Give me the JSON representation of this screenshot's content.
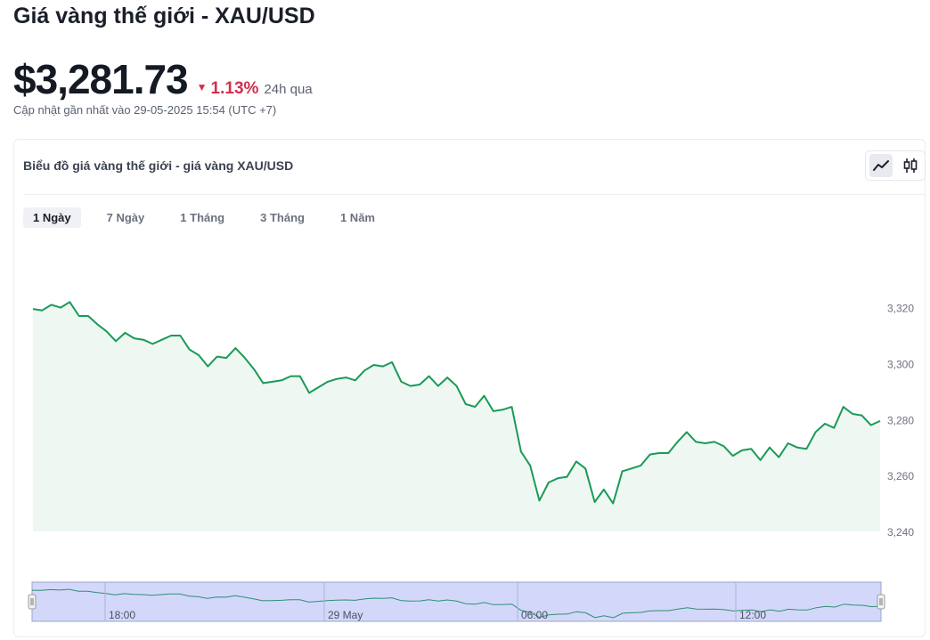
{
  "header": {
    "title": "Giá vàng thế giới - XAU/USD",
    "price": "$3,281.73",
    "change_pct": "1.13%",
    "change_period": "24h qua",
    "change_color": "#d32f4a",
    "updated": "Cập nhật gần nhất vào 29-05-2025 15:54 (UTC +7)"
  },
  "card": {
    "title": "Biểu đồ giá vàng thế giới - giá vàng XAU/USD",
    "view_toggle": [
      {
        "icon": "line-chart-icon",
        "active": true
      },
      {
        "icon": "candlestick-icon",
        "active": false
      }
    ],
    "ranges": [
      {
        "label": "1 Ngày",
        "active": true
      },
      {
        "label": "7 Ngày",
        "active": false
      },
      {
        "label": "1 Tháng",
        "active": false
      },
      {
        "label": "3 Tháng",
        "active": false
      },
      {
        "label": "1 Năm",
        "active": false
      }
    ]
  },
  "chart_data": {
    "type": "area",
    "title": "",
    "xlabel": "",
    "ylabel": "",
    "ylim": [
      3240,
      3324
    ],
    "y_ticks": [
      "3,240",
      "3,260",
      "3,280",
      "3,300",
      "3,320"
    ],
    "y_tick_values": [
      3240,
      3260,
      3280,
      3300,
      3320
    ],
    "grid": false,
    "line_color": "#1a9a58",
    "fill_color": "#eef7f1",
    "series": [
      {
        "values": [
          3319.5,
          3319,
          3321,
          3320,
          3322,
          3317,
          3317,
          3314,
          3311.5,
          3308,
          3311,
          3309,
          3308.5,
          3307,
          3308.5,
          3310,
          3310,
          3305,
          3303,
          3299,
          3302.5,
          3302,
          3305.5,
          3302,
          3298,
          3293,
          3293.5,
          3294,
          3295.5,
          3295.5,
          3289.5,
          3291.5,
          3293.5,
          3294.5,
          3295,
          3294,
          3297.5,
          3299.5,
          3299,
          3300.5,
          3293.5,
          3292,
          3292.5,
          3295.5,
          3292,
          3295,
          3292,
          3285.5,
          3284.5,
          3288.5,
          3283,
          3283.5,
          3284.5,
          3268.5,
          3263.5,
          3251,
          3257.5,
          3259,
          3259.5,
          3265,
          3262.5,
          3250.5,
          3255,
          3250,
          3261.5,
          3262.5,
          3263.5,
          3267.5,
          3268,
          3268,
          3272,
          3275.5,
          3272,
          3271.5,
          3272,
          3270.5,
          3267,
          3269,
          3269.5,
          3265.5,
          3270,
          3266.5,
          3271.5,
          3270,
          3269.5,
          3275.5,
          3278.5,
          3277,
          3284.5,
          3282,
          3281.5,
          3278,
          3279.5
        ]
      }
    ],
    "navigator": {
      "x_labels": [
        "18:00",
        "29 May",
        "06:00",
        "12:00"
      ],
      "fill_color": "#d3d8fb",
      "border_color": "#9aa4c8"
    }
  }
}
